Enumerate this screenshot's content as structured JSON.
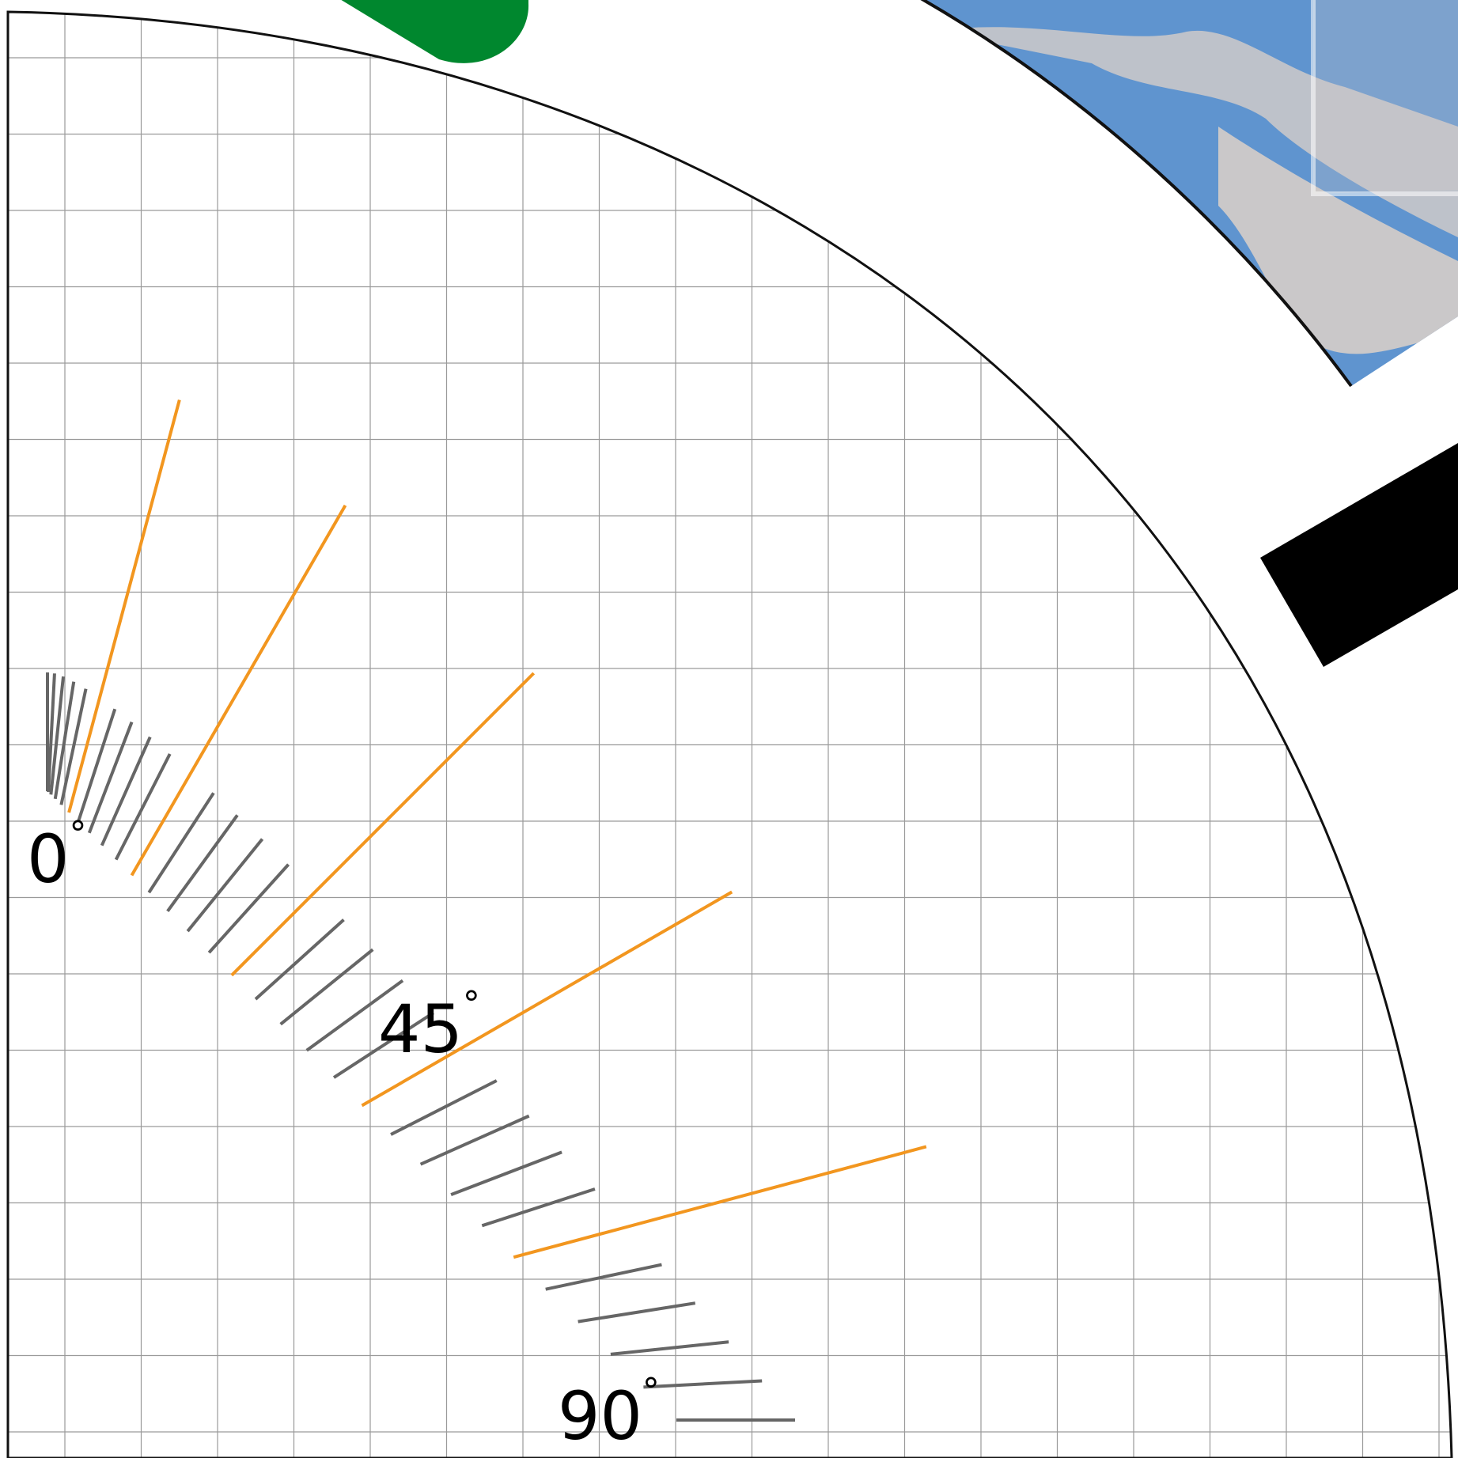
{
  "protractor": {
    "scale": {
      "start_deg": 0,
      "end_deg": 90,
      "step_deg": 3,
      "major_every_deg": 15
    },
    "labels": [
      {
        "value": "0",
        "unit": "°"
      },
      {
        "value": "45",
        "unit": "°"
      },
      {
        "value": "90",
        "unit": "°"
      }
    ],
    "grid": true
  },
  "colors": {
    "background": "#ffffff",
    "grid_line": "#9a9a9a",
    "minor_tick": "#666666",
    "major_tick": "#f2961f",
    "outline": "#111111",
    "knob": "#00872e",
    "handle": "#000000",
    "photo_blue": "#5f94cf",
    "photo_light": "#d6cdc8"
  },
  "icons": {
    "knob": "green-rounded-knob",
    "handle": "black-bar-handle",
    "photo": "blue-patterned-image"
  }
}
